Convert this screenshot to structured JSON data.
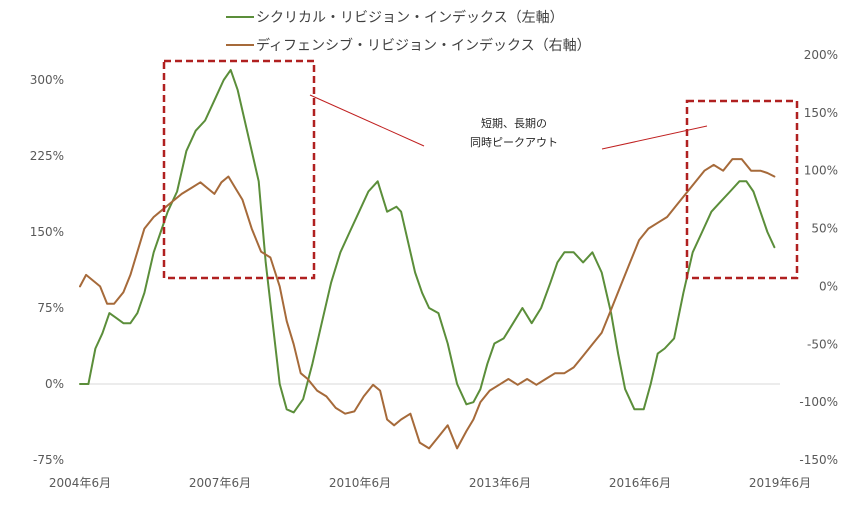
{
  "chart_data": {
    "type": "line",
    "title": "",
    "xlabel": "",
    "x_ticks": [
      "2004年6月",
      "2007年6月",
      "2010年6月",
      "2013年6月",
      "2016年6月",
      "2019年6月"
    ],
    "x_range": [
      2004.42,
      2019.42
    ],
    "left_axis": {
      "range": [
        -75,
        300
      ],
      "ticks": [
        -75,
        0,
        75,
        150,
        225,
        300
      ],
      "tick_labels": [
        "-75%",
        "0%",
        "75%",
        "150%",
        "225%",
        "300%"
      ]
    },
    "right_axis": {
      "range": [
        -150,
        200
      ],
      "ticks": [
        -150,
        -100,
        -50,
        0,
        50,
        100,
        150,
        200
      ],
      "tick_labels": [
        "-150%",
        "-100%",
        "-50%",
        "0%",
        "50%",
        "100%",
        "150%",
        "200%"
      ]
    },
    "series": [
      {
        "name": "シクリカル・リビジョン・インデックス（左軸）",
        "axis": "left",
        "color": "#5b8e3a",
        "x": [
          2004.42,
          2004.6,
          2004.75,
          2004.9,
          2005.05,
          2005.2,
          2005.35,
          2005.5,
          2005.65,
          2005.8,
          2006.0,
          2006.15,
          2006.3,
          2006.5,
          2006.7,
          2006.9,
          2007.1,
          2007.3,
          2007.5,
          2007.65,
          2007.8,
          2007.95,
          2008.1,
          2008.25,
          2008.4,
          2008.55,
          2008.7,
          2008.85,
          2009.0,
          2009.2,
          2009.4,
          2009.6,
          2009.8,
          2010.0,
          2010.2,
          2010.4,
          2010.6,
          2010.8,
          2011.0,
          2011.2,
          2011.3,
          2011.45,
          2011.6,
          2011.75,
          2011.9,
          2012.1,
          2012.3,
          2012.5,
          2012.7,
          2012.85,
          2013.0,
          2013.15,
          2013.3,
          2013.5,
          2013.7,
          2013.9,
          2014.1,
          2014.3,
          2014.5,
          2014.65,
          2014.8,
          2015.0,
          2015.2,
          2015.4,
          2015.6,
          2015.8,
          2015.95,
          2016.1,
          2016.3,
          2016.5,
          2016.65,
          2016.8,
          2016.95,
          2017.15,
          2017.35,
          2017.55,
          2017.75,
          2017.95,
          2018.15,
          2018.35,
          2018.55,
          2018.7,
          2018.85,
          2019.0,
          2019.15,
          2019.3
        ],
        "values": [
          0,
          0,
          35,
          50,
          70,
          65,
          60,
          60,
          70,
          90,
          130,
          150,
          170,
          190,
          230,
          250,
          260,
          280,
          300,
          310,
          290,
          260,
          230,
          200,
          120,
          60,
          0,
          -25,
          -28,
          -15,
          20,
          60,
          100,
          130,
          150,
          170,
          190,
          200,
          170,
          175,
          170,
          140,
          110,
          90,
          75,
          70,
          40,
          0,
          -20,
          -18,
          -5,
          20,
          40,
          45,
          60,
          75,
          60,
          75,
          100,
          120,
          130,
          130,
          120,
          130,
          110,
          70,
          30,
          -5,
          -25,
          -25,
          0,
          30,
          35,
          45,
          90,
          130,
          150,
          170,
          180,
          190,
          200,
          200,
          190,
          170,
          150,
          135
        ]
      },
      {
        "name": "ディフェンシブ・リビジョン・インデックス（右軸）",
        "axis": "right",
        "color": "#a66a3a",
        "x": [
          2004.42,
          2004.55,
          2004.7,
          2004.85,
          2005.0,
          2005.15,
          2005.35,
          2005.5,
          2005.65,
          2005.8,
          2006.0,
          2006.15,
          2006.3,
          2006.45,
          2006.6,
          2006.8,
          2007.0,
          2007.15,
          2007.3,
          2007.45,
          2007.6,
          2007.75,
          2007.9,
          2008.1,
          2008.3,
          2008.5,
          2008.7,
          2008.85,
          2009.0,
          2009.15,
          2009.3,
          2009.5,
          2009.7,
          2009.9,
          2010.1,
          2010.3,
          2010.5,
          2010.7,
          2010.85,
          2011.0,
          2011.15,
          2011.3,
          2011.5,
          2011.7,
          2011.9,
          2012.1,
          2012.3,
          2012.5,
          2012.7,
          2012.85,
          2013.0,
          2013.2,
          2013.4,
          2013.6,
          2013.8,
          2014.0,
          2014.2,
          2014.4,
          2014.6,
          2014.8,
          2015.0,
          2015.2,
          2015.4,
          2015.6,
          2015.8,
          2016.0,
          2016.2,
          2016.4,
          2016.6,
          2016.8,
          2017.0,
          2017.2,
          2017.4,
          2017.6,
          2017.8,
          2018.0,
          2018.2,
          2018.4,
          2018.6,
          2018.8,
          2019.0,
          2019.15,
          2019.3
        ],
        "values": [
          0,
          10,
          5,
          0,
          -15,
          -15,
          -5,
          10,
          30,
          50,
          60,
          65,
          70,
          75,
          80,
          85,
          90,
          85,
          80,
          90,
          95,
          85,
          75,
          50,
          30,
          25,
          0,
          -30,
          -50,
          -75,
          -80,
          -90,
          -95,
          -105,
          -110,
          -108,
          -95,
          -85,
          -90,
          -115,
          -120,
          -115,
          -110,
          -135,
          -140,
          -130,
          -120,
          -140,
          -125,
          -115,
          -100,
          -90,
          -85,
          -80,
          -85,
          -80,
          -85,
          -80,
          -75,
          -75,
          -70,
          -60,
          -50,
          -40,
          -20,
          0,
          20,
          40,
          50,
          55,
          60,
          70,
          80,
          90,
          100,
          105,
          100,
          110,
          110,
          100,
          100,
          98,
          95
        ]
      }
    ],
    "annotations": [
      {
        "text_lines": [
          "短期、長期の",
          "同時ピークアウト"
        ]
      }
    ]
  }
}
